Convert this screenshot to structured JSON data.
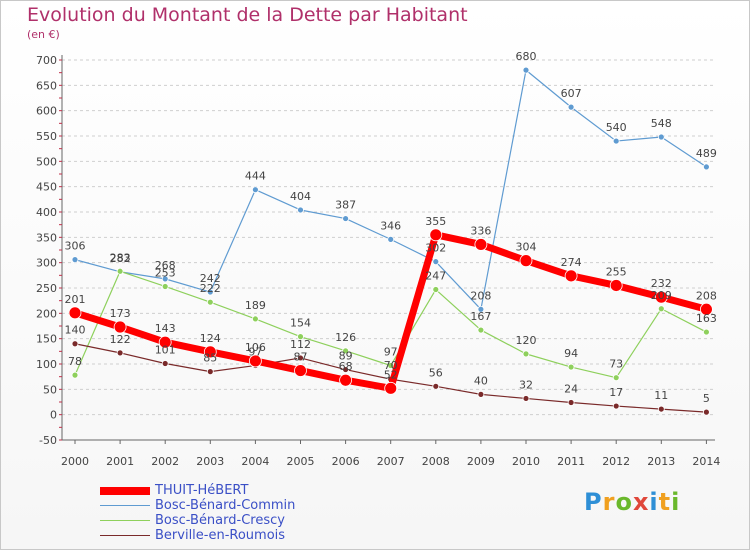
{
  "chart_data": {
    "type": "line",
    "title": "Evolution du Montant de la Dette par Habitant",
    "subtitle": "(en €)",
    "xlabel": "",
    "ylabel": "",
    "ylim": [
      -50,
      700
    ],
    "y_ticks": [
      -50,
      0,
      50,
      100,
      150,
      200,
      250,
      300,
      350,
      400,
      450,
      500,
      550,
      600,
      650,
      700
    ],
    "categories": [
      "2000",
      "2001",
      "2002",
      "2003",
      "2004",
      "2005",
      "2006",
      "2007",
      "2008",
      "2009",
      "2010",
      "2011",
      "2012",
      "2013",
      "2014"
    ],
    "grid": "horizontal dashed",
    "legend_position": "bottom-left",
    "series": [
      {
        "name": "THUIT-HéBERT",
        "color": "#ff0000",
        "values": [
          201,
          173,
          143,
          124,
          106,
          87,
          68,
          52,
          355,
          336,
          304,
          274,
          255,
          232,
          208
        ],
        "segments": [
          [
            0,
            7
          ],
          [
            7,
            14
          ]
        ]
      },
      {
        "name": "Bosc-Bénard-Commin",
        "color": "#5f9bd1",
        "values": [
          306,
          282,
          268,
          242,
          444,
          404,
          387,
          346,
          302,
          208,
          680,
          607,
          540,
          548,
          489
        ],
        "segments": [
          [
            0,
            14
          ]
        ]
      },
      {
        "name": "Bosc-Bénard-Crescy",
        "color": "#8ed05c",
        "values": [
          78,
          283,
          253,
          222,
          189,
          154,
          126,
          97,
          247,
          167,
          120,
          94,
          73,
          209,
          163
        ],
        "segments": [
          [
            0,
            7
          ],
          [
            7,
            14
          ]
        ]
      },
      {
        "name": "Berville-en-Roumois",
        "color": "#7a2a2a",
        "values": [
          140,
          122,
          101,
          85,
          97,
          112,
          89,
          70,
          56,
          40,
          32,
          24,
          17,
          11,
          5
        ],
        "segments": [
          [
            0,
            14
          ]
        ]
      }
    ]
  },
  "brand": {
    "letters": [
      "P",
      "r",
      "o",
      "x",
      "i",
      "t",
      "i"
    ],
    "colors": [
      "#2e8fd6",
      "#f0a020",
      "#6ab82c",
      "#e0473a",
      "#2e8fd6",
      "#f0a020",
      "#6ab82c"
    ]
  }
}
